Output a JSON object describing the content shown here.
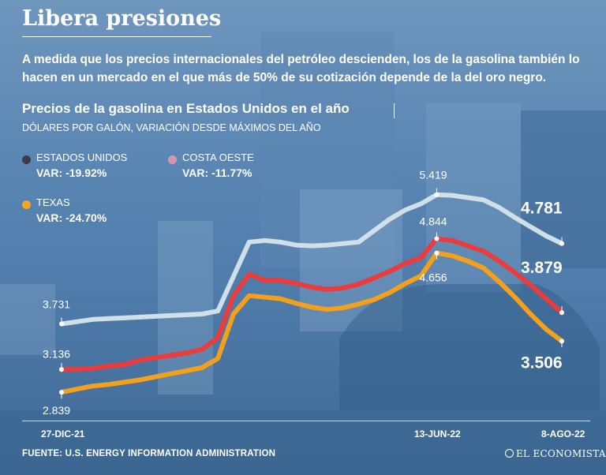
{
  "header": {
    "title": "Libera presiones",
    "deck": "A medida que los precios internacionales del petróleo descienden, los de la gasolina también lo hacen en un mercado en el que más de 50% de su cotización depende de la del oro negro."
  },
  "legend": [
    {
      "name": "ESTADOS UNIDOS",
      "var": "VAR: -19.92%",
      "color": "#3d3a4f"
    },
    {
      "name": "COSTA OESTE",
      "var": "VAR: -11.77%",
      "color": "#d596b4"
    },
    {
      "name": "TEXAS",
      "var": "VAR: -24.70%",
      "color": "#f5a623"
    }
  ],
  "footer": {
    "source": "FUENTE: U.S. ENERGY INFORMATION ADMINISTRATION",
    "brand": "EL ECONOMISTA"
  },
  "colors": {
    "costa_oeste_line": "#cfe0e8",
    "estados_unidos_line": "#ec3b3b",
    "texas_line": "#f5a01a",
    "text": "#ffffff"
  },
  "chart_data": {
    "type": "line",
    "title": "Precios de la gasolina en Estados Unidos en el año",
    "subtitle": "DÓLARES POR GALÓN, VARIACIÓN DESDE MÁXIMOS DEL AÑO",
    "xlabel": "",
    "ylabel": "",
    "x_tick_labels": [
      "27-DIC-21",
      "13-JUN-22",
      "8-AGO-22"
    ],
    "ylim": [
      2.5,
      5.9
    ],
    "grid": false,
    "n_points": 33,
    "peak_index": 24,
    "series": [
      {
        "name": "COSTA OESTE",
        "values": [
          3.731,
          3.76,
          3.79,
          3.8,
          3.81,
          3.82,
          3.83,
          3.84,
          3.85,
          3.86,
          3.9,
          4.35,
          4.8,
          4.82,
          4.8,
          4.76,
          4.75,
          4.76,
          4.78,
          4.8,
          4.95,
          5.1,
          5.22,
          5.3,
          5.419,
          5.41,
          5.38,
          5.35,
          5.25,
          5.12,
          5.0,
          4.88,
          4.781
        ],
        "labels": [
          {
            "index": 0,
            "text": "3.731"
          },
          {
            "index": 24,
            "text": "5.419"
          },
          {
            "index": 32,
            "text": "4.781"
          }
        ]
      },
      {
        "name": "ESTADOS UNIDOS",
        "values": [
          3.136,
          3.14,
          3.15,
          3.18,
          3.2,
          3.26,
          3.29,
          3.32,
          3.35,
          3.4,
          3.55,
          4.1,
          4.38,
          4.3,
          4.3,
          4.26,
          4.21,
          4.18,
          4.2,
          4.25,
          4.33,
          4.42,
          4.52,
          4.6,
          4.844,
          4.82,
          4.75,
          4.68,
          4.55,
          4.4,
          4.24,
          4.06,
          3.879
        ],
        "labels": [
          {
            "index": 0,
            "text": "3.136"
          },
          {
            "index": 24,
            "text": "4.844"
          },
          {
            "index": 32,
            "text": "3.879"
          }
        ]
      },
      {
        "name": "TEXAS",
        "values": [
          2.839,
          2.88,
          2.92,
          2.94,
          2.97,
          3.0,
          3.04,
          3.08,
          3.12,
          3.16,
          3.28,
          3.86,
          4.1,
          4.08,
          4.06,
          4.0,
          3.95,
          3.92,
          3.94,
          3.99,
          4.05,
          4.14,
          4.26,
          4.36,
          4.656,
          4.62,
          4.55,
          4.46,
          4.28,
          4.08,
          3.86,
          3.66,
          3.506
        ],
        "labels": [
          {
            "index": 0,
            "text": "2.839"
          },
          {
            "index": 24,
            "text": "4.656"
          },
          {
            "index": 32,
            "text": "3.506"
          }
        ]
      }
    ]
  }
}
